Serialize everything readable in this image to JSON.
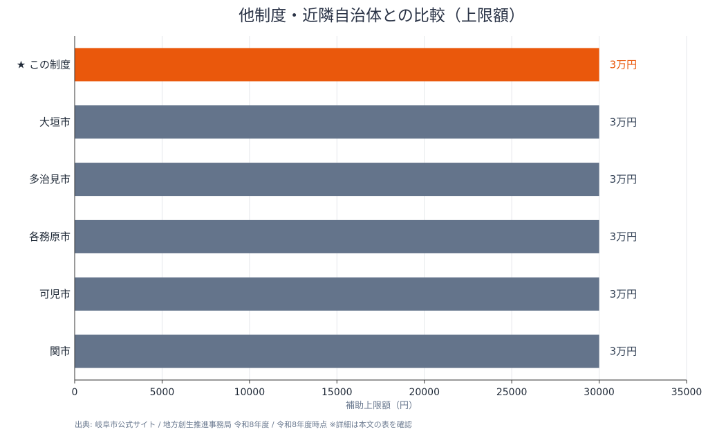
{
  "chart_data": {
    "type": "bar",
    "orientation": "horizontal",
    "title": "他制度・近隣自治体との比較（上限額）",
    "xlabel": "補助上限額（円）",
    "categories": [
      "★ この制度",
      "大垣市",
      "多治見市",
      "各務原市",
      "可児市",
      "関市"
    ],
    "values": [
      30000,
      30000,
      30000,
      30000,
      30000,
      30000
    ],
    "value_labels": [
      "3万円",
      "3万円",
      "3万円",
      "3万円",
      "3万円",
      "3万円"
    ],
    "highlight_index": 0,
    "xlim": [
      0,
      35000
    ],
    "xticks": [
      0,
      5000,
      10000,
      15000,
      20000,
      25000,
      30000,
      35000
    ],
    "grid": "vertical",
    "source": "出典: 岐阜市公式サイト / 地方創生推進事務局 令和8年度 / 令和8年度時点 ※詳細は本文の表を確認",
    "colors": {
      "highlight": "#ea580c",
      "bar": "#64748b",
      "grid": "#e5e7eb",
      "axis": "#333333"
    }
  }
}
